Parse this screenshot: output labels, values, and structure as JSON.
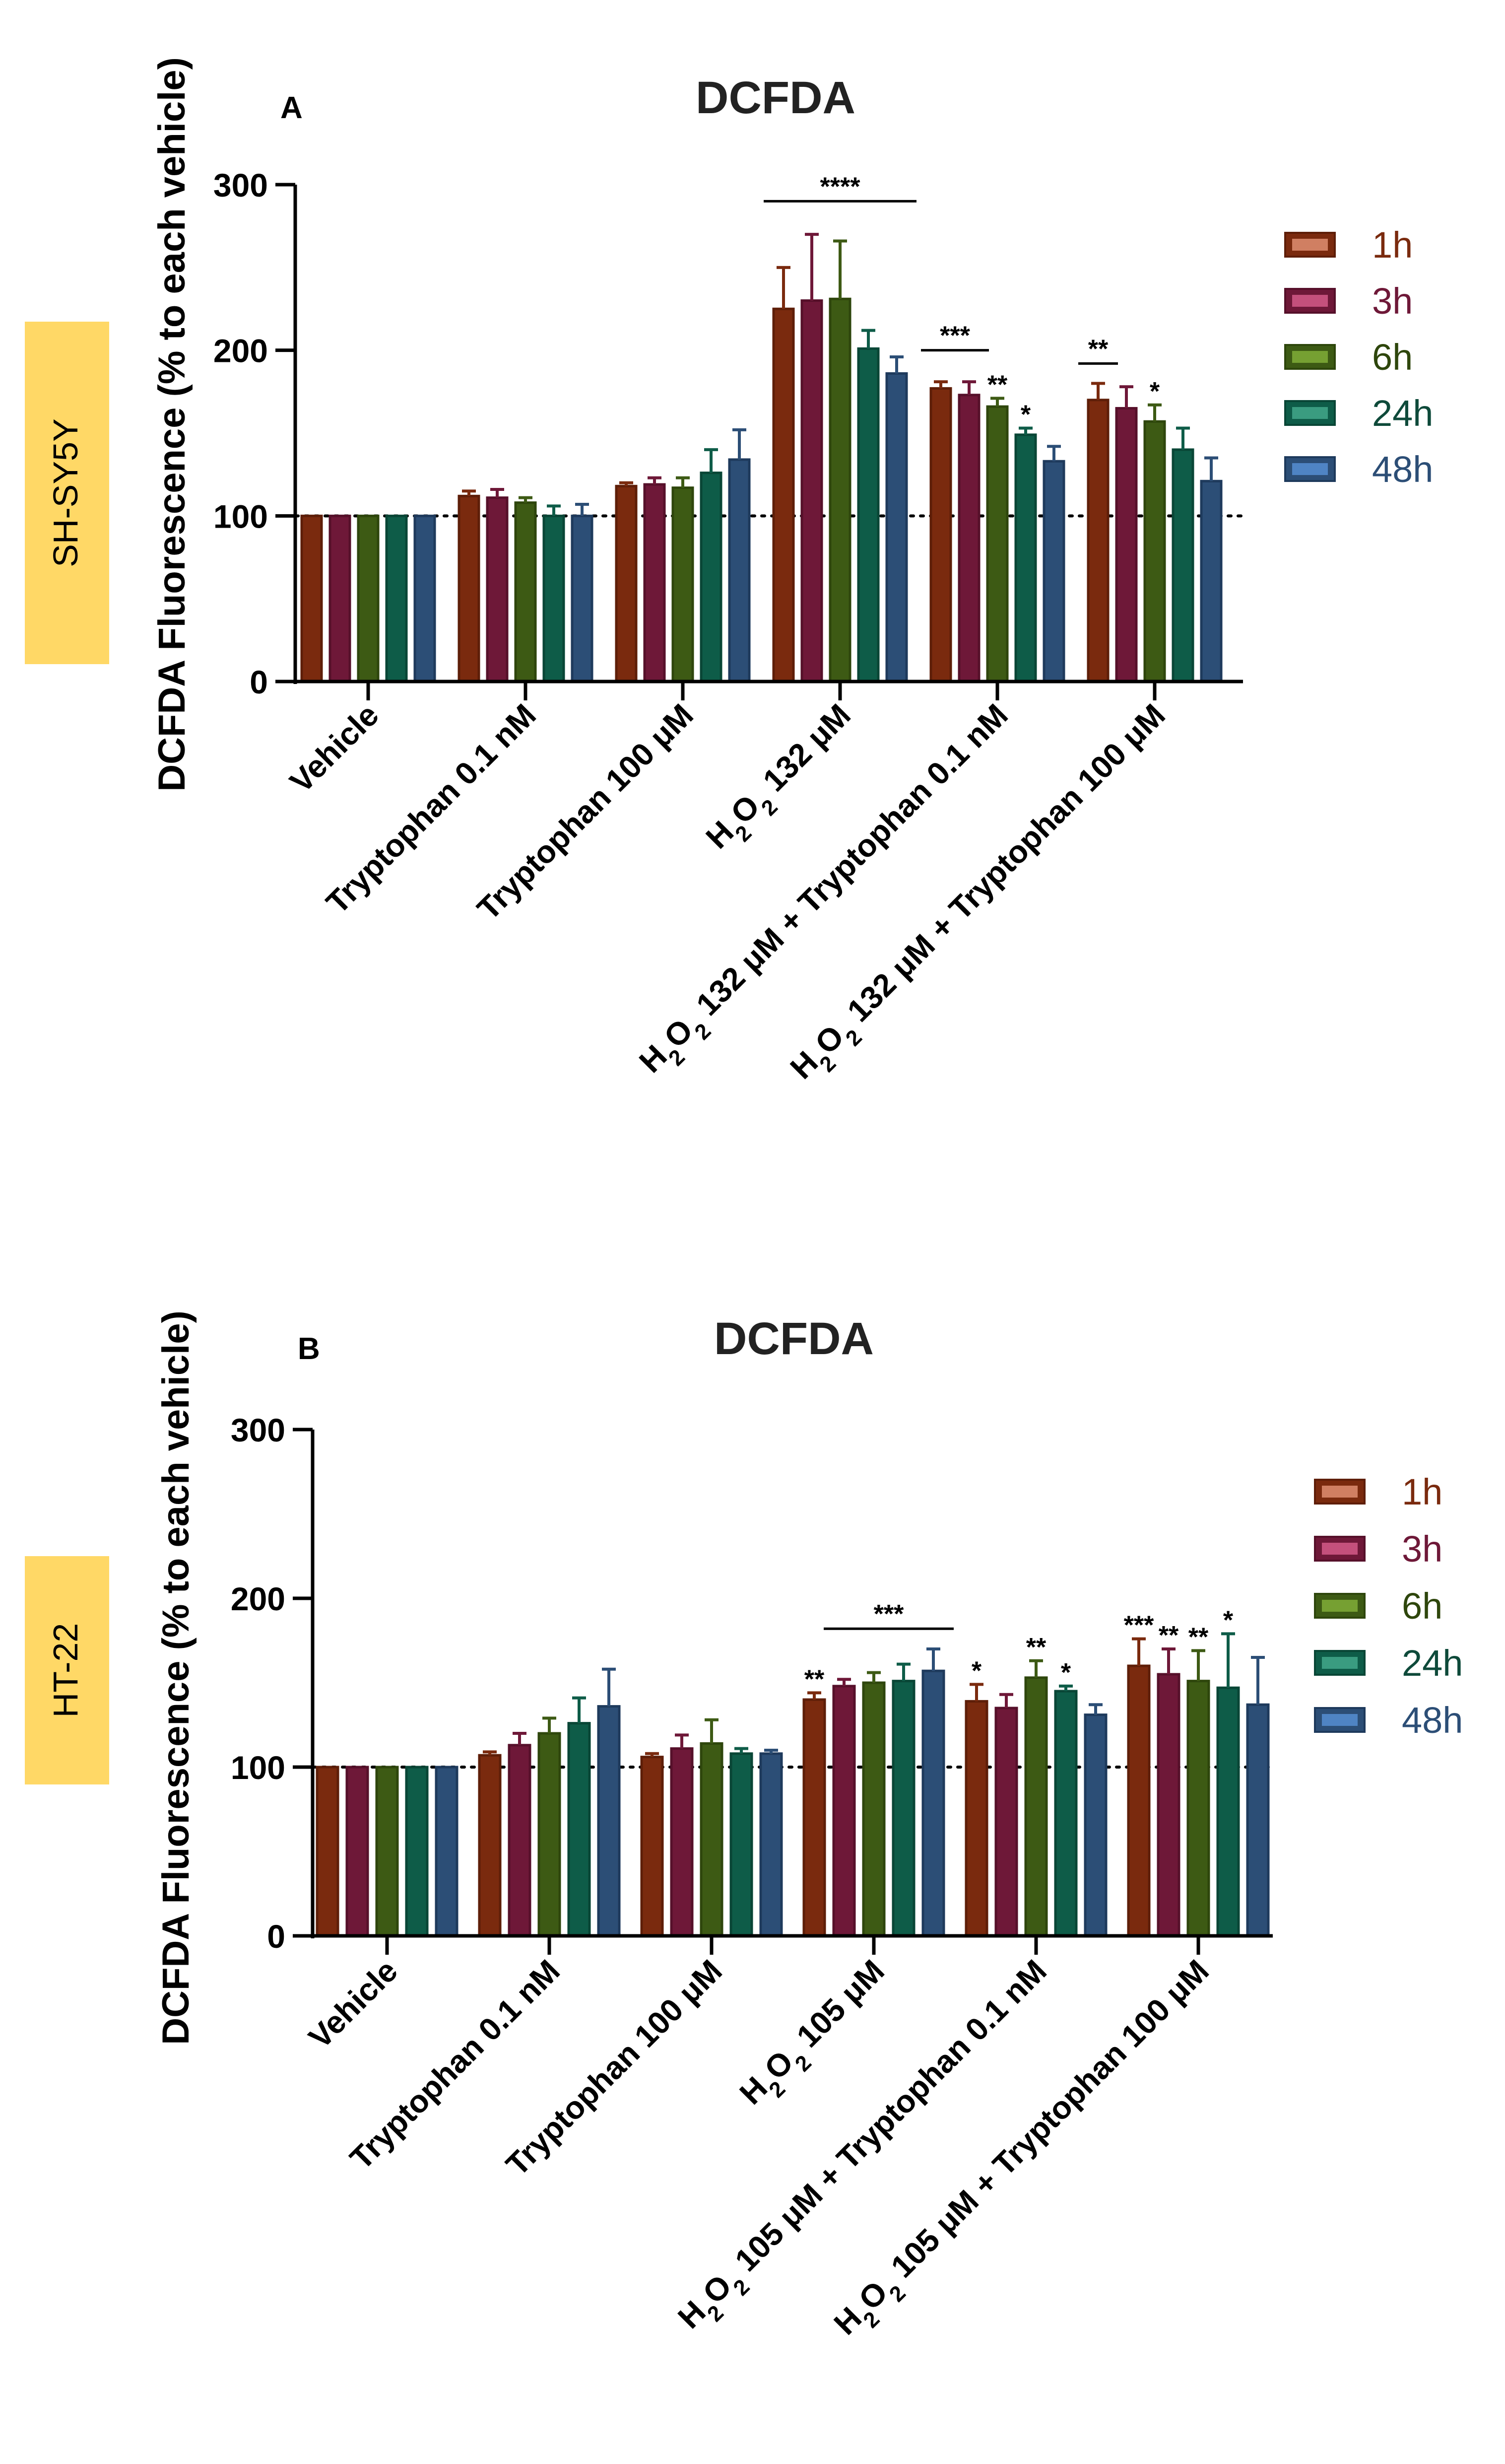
{
  "chart_data": [
    {
      "panel_letter": "A",
      "title": "DCFDA",
      "cell_line": "SH-SY5Y",
      "type": "bar",
      "ylabel": "DCFDA  Fluorescence (% to each vehicle)",
      "ylim": [
        0,
        300
      ],
      "yticks": [
        "0",
        "100",
        "200",
        "300"
      ],
      "reference_line": 100,
      "categories": [
        {
          "parts": [
            {
              "t": "Vehicle"
            }
          ]
        },
        {
          "parts": [
            {
              "t": "Tryptophan 0.1 nM"
            }
          ]
        },
        {
          "parts": [
            {
              "t": "Tryptophan 100 μM"
            }
          ]
        },
        {
          "parts": [
            {
              "t": "H"
            },
            {
              "t": "2",
              "sub": true
            },
            {
              "t": "O"
            },
            {
              "t": "2",
              "sub": true
            },
            {
              "t": " 132 μM"
            }
          ]
        },
        {
          "parts": [
            {
              "t": "H"
            },
            {
              "t": "2",
              "sub": true
            },
            {
              "t": "O"
            },
            {
              "t": "2",
              "sub": true
            },
            {
              "t": " 132 μM + Tryptophan 0.1 nM"
            }
          ]
        },
        {
          "parts": [
            {
              "t": "H"
            },
            {
              "t": "2",
              "sub": true
            },
            {
              "t": "O"
            },
            {
              "t": "2",
              "sub": true
            },
            {
              "t": " 132 μM + Tryptophan 100 μM"
            }
          ]
        }
      ],
      "series": [
        {
          "name": "1h",
          "values": [
            100,
            112,
            118,
            225,
            177,
            170
          ],
          "errors": [
            0,
            3,
            2,
            25,
            4,
            10
          ]
        },
        {
          "name": "3h",
          "values": [
            100,
            111,
            119,
            230,
            173,
            165
          ],
          "errors": [
            0,
            5,
            4,
            40,
            8,
            13
          ]
        },
        {
          "name": "6h",
          "values": [
            100,
            108,
            117,
            231,
            166,
            157
          ],
          "errors": [
            0,
            3,
            6,
            35,
            5,
            10
          ]
        },
        {
          "name": "24h",
          "values": [
            100,
            100,
            126,
            201,
            149,
            140
          ],
          "errors": [
            0,
            6,
            14,
            11,
            4,
            13
          ]
        },
        {
          "name": "48h",
          "values": [
            100,
            100,
            134,
            186,
            133,
            121
          ],
          "errors": [
            0,
            7,
            18,
            10,
            9,
            14
          ]
        }
      ],
      "significance_bars": [
        {
          "text": "****",
          "from": {
            "cat": 3,
            "series": 0
          },
          "to": {
            "cat": 3,
            "series": 4
          },
          "y": 290
        },
        {
          "text": "***",
          "from": {
            "cat": 4,
            "series": 0
          },
          "to": {
            "cat": 4,
            "series": 1
          },
          "y": 200
        },
        {
          "text": "**",
          "from": {
            "cat": 5,
            "series": 0
          },
          "to": {
            "cat": 5,
            "series": 0
          },
          "y": 192
        }
      ],
      "significance_marks": [
        {
          "text": "**",
          "cat": 4,
          "series": 2
        },
        {
          "text": "*",
          "cat": 4,
          "series": 3
        },
        {
          "text": "*",
          "cat": 5,
          "series": 2
        }
      ]
    },
    {
      "panel_letter": "B",
      "title": "DCFDA",
      "cell_line": "HT-22",
      "type": "bar",
      "ylabel": "DCFDA  Fluorescence (% to each vehicle)",
      "ylim": [
        0,
        300
      ],
      "yticks": [
        "0",
        "100",
        "200",
        "300"
      ],
      "reference_line": 100,
      "categories": [
        {
          "parts": [
            {
              "t": "Vehicle"
            }
          ]
        },
        {
          "parts": [
            {
              "t": "Tryptophan 0.1 nM"
            }
          ]
        },
        {
          "parts": [
            {
              "t": "Tryptophan 100 μM"
            }
          ]
        },
        {
          "parts": [
            {
              "t": "H"
            },
            {
              "t": "2",
              "sub": true
            },
            {
              "t": "O"
            },
            {
              "t": "2",
              "sub": true
            },
            {
              "t": " 105 μM"
            }
          ]
        },
        {
          "parts": [
            {
              "t": "H"
            },
            {
              "t": "2",
              "sub": true
            },
            {
              "t": "O"
            },
            {
              "t": "2",
              "sub": true
            },
            {
              "t": " 105 μM + Tryptophan 0.1 nM"
            }
          ]
        },
        {
          "parts": [
            {
              "t": "H"
            },
            {
              "t": "2",
              "sub": true
            },
            {
              "t": "O"
            },
            {
              "t": "2",
              "sub": true
            },
            {
              "t": " 105 μM + Tryptophan 100 μM"
            }
          ]
        }
      ],
      "series": [
        {
          "name": "1h",
          "values": [
            100,
            107,
            106,
            140,
            139,
            160
          ],
          "errors": [
            0,
            2,
            2,
            4,
            10,
            16
          ]
        },
        {
          "name": "3h",
          "values": [
            100,
            113,
            111,
            148,
            135,
            155
          ],
          "errors": [
            0,
            7,
            8,
            4,
            8,
            15
          ]
        },
        {
          "name": "6h",
          "values": [
            100,
            120,
            114,
            150,
            153,
            151
          ],
          "errors": [
            0,
            9,
            14,
            6,
            10,
            18
          ]
        },
        {
          "name": "24h",
          "values": [
            100,
            126,
            108,
            151,
            145,
            147
          ],
          "errors": [
            0,
            15,
            3,
            10,
            3,
            32
          ]
        },
        {
          "name": "48h",
          "values": [
            100,
            136,
            108,
            157,
            131,
            137
          ],
          "errors": [
            0,
            22,
            2,
            13,
            6,
            28
          ]
        }
      ],
      "significance_bars": [
        {
          "text": "***",
          "from": {
            "cat": 3,
            "series": 1
          },
          "to": {
            "cat": 3,
            "series": 4
          },
          "y": 182
        }
      ],
      "significance_marks": [
        {
          "text": "**",
          "cat": 3,
          "series": 0
        },
        {
          "text": "*",
          "cat": 4,
          "series": 0
        },
        {
          "text": "**",
          "cat": 4,
          "series": 2
        },
        {
          "text": "*",
          "cat": 4,
          "series": 3
        },
        {
          "text": "***",
          "cat": 5,
          "series": 0
        },
        {
          "text": "**",
          "cat": 5,
          "series": 1
        },
        {
          "text": "**",
          "cat": 5,
          "series": 2
        },
        {
          "text": "*",
          "cat": 5,
          "series": 3
        }
      ]
    }
  ],
  "style": {
    "series_colors": {
      "fills": [
        "#7a2a0e",
        "#6e1838",
        "#3d5a14",
        "#0e5c48",
        "#2c4e76"
      ],
      "strokes": [
        "#5e1e08",
        "#56102a",
        "#2e460c",
        "#094636",
        "#1e3a5c"
      ],
      "swatch_inner": [
        "#d07f62",
        "#c4507c",
        "#76a032",
        "#3a9c80",
        "#4f84c4"
      ],
      "legend_text": [
        "#7a2a0e",
        "#6e1838",
        "#2e460c",
        "#0e4a3a",
        "#2c4e76"
      ]
    },
    "cell_label_box": "#ffd866",
    "axis_color": "#000000"
  }
}
